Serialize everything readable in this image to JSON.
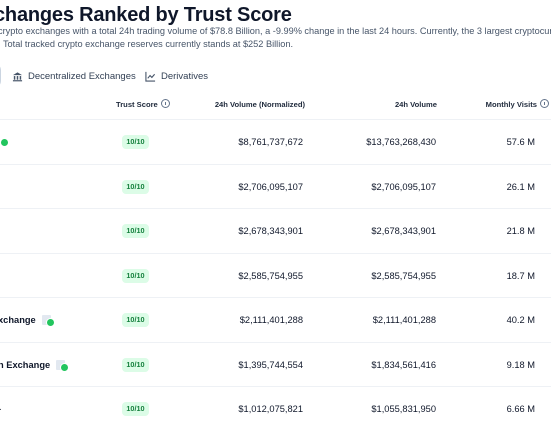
{
  "header": {
    "title": "changes Ranked by Trust Score",
    "desc_line1": "crypto exchanges with a total 24h trading volume of $78.8 Billion, a -9.99% change in the last 24 hours. Currently, the 3 largest cryptocurrenc",
    "desc_line2": ". Total tracked crypto exchange reserves currently stands at $252 Billion."
  },
  "tabs": [
    {
      "label": "Decentralized Exchanges",
      "icon": "bank-icon"
    },
    {
      "label": "Derivatives",
      "icon": "line-chart-icon"
    }
  ],
  "table": {
    "columns": {
      "trust_score": "Trust Score",
      "volume_normalized": "24h Volume (Normalized)",
      "volume": "24h Volume",
      "monthly_visits": "Monthly Visits"
    },
    "rows": [
      {
        "name": "",
        "badge": "check",
        "score": "10/10",
        "norm": "$8,761,737,672",
        "vol": "$13,763,268,430",
        "visits": "57.6 M"
      },
      {
        "name": "",
        "badge": "",
        "score": "10/10",
        "norm": "$2,706,095,107",
        "vol": "$2,706,095,107",
        "visits": "26.1 M"
      },
      {
        "name": "",
        "badge": "",
        "score": "10/10",
        "norm": "$2,678,343,901",
        "vol": "$2,678,343,901",
        "visits": "21.8 M"
      },
      {
        "name": "",
        "badge": "",
        "score": "10/10",
        "norm": "$2,585,754,955",
        "vol": "$2,585,754,955",
        "visits": "18.7 M"
      },
      {
        "name": "xchange",
        "badge": "doc",
        "score": "10/10",
        "norm": "$2,111,401,288",
        "vol": "$2,111,401,288",
        "visits": "40.2 M"
      },
      {
        "name": "n Exchange",
        "badge": "doc",
        "score": "10/10",
        "norm": "$1,395,744,554",
        "vol": "$1,834,561,416",
        "visits": "9.18 M"
      },
      {
        "name": "-",
        "badge": "",
        "score": "10/10",
        "norm": "$1,012,075,821",
        "vol": "$1,055,831,950",
        "visits": "6.66 M"
      }
    ]
  },
  "colors": {
    "score_bg": "#dcfce7",
    "score_fg": "#15803d",
    "verified": "#22c55e"
  }
}
